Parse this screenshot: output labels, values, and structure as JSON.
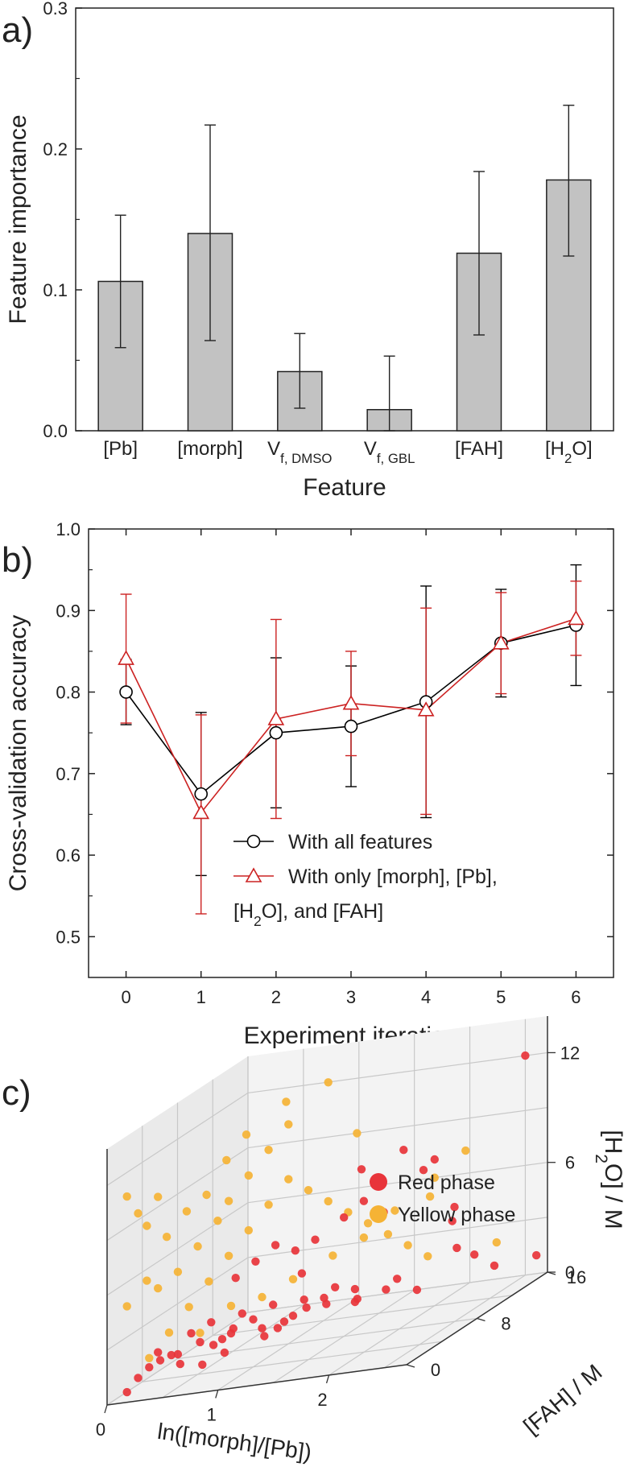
{
  "panels": {
    "a": "a)",
    "b": "b)",
    "c": "c)"
  },
  "chart_data": [
    {
      "type": "bar",
      "title": "",
      "categories": [
        "[Pb]",
        "[morph]",
        "V_f,DMSO",
        "V_f,GBL",
        "[FAH]",
        "[H2O]"
      ],
      "values": [
        0.106,
        0.14,
        0.042,
        0.015,
        0.126,
        0.178
      ],
      "error_low": [
        0.059,
        0.064,
        0.016,
        0.0,
        0.068,
        0.124
      ],
      "error_high": [
        0.153,
        0.217,
        0.069,
        0.053,
        0.184,
        0.231
      ],
      "xlabel": "Feature",
      "ylabel": "Feature importance",
      "ylim": [
        0,
        0.3
      ],
      "yticks": [
        "0.0",
        "0.1",
        "0.2",
        "0.3"
      ]
    },
    {
      "type": "line",
      "x": [
        0,
        1,
        2,
        3,
        4,
        5,
        6
      ],
      "xlabel": "Experiment iteration",
      "ylabel": "Cross-validation accuracy",
      "xlim": [
        -0.5,
        6.5
      ],
      "ylim": [
        0.45,
        1.0
      ],
      "xticks": [
        "0",
        "1",
        "2",
        "3",
        "4",
        "5",
        "6"
      ],
      "yticks": [
        "0.5",
        "0.6",
        "0.7",
        "0.8",
        "0.9",
        "1.0"
      ],
      "series": [
        {
          "name": "With all features",
          "marker": "circle",
          "color": "#000000",
          "values": [
            0.8,
            0.675,
            0.75,
            0.758,
            0.788,
            0.86,
            0.882
          ],
          "error_low": [
            0.76,
            0.575,
            0.658,
            0.684,
            0.646,
            0.794,
            0.808
          ],
          "error_high": [
            0.84,
            0.775,
            0.842,
            0.832,
            0.93,
            0.926,
            0.956
          ]
        },
        {
          "name": "With only [morph], [Pb], [H2O], and [FAH]",
          "marker": "triangle",
          "color": "#cc2222",
          "values": [
            0.841,
            0.652,
            0.767,
            0.786,
            0.778,
            0.86,
            0.89
          ],
          "error_low": [
            0.762,
            0.528,
            0.645,
            0.722,
            0.65,
            0.798,
            0.845
          ],
          "error_high": [
            0.92,
            0.772,
            0.889,
            0.85,
            0.903,
            0.922,
            0.936
          ]
        }
      ]
    },
    {
      "type": "scatter",
      "projection": "3d",
      "xlabel": "ln([morph]/[Pb])",
      "ylabel": "[FAH] / M",
      "zlabel": "[H2O] / M",
      "xticks": [
        "0",
        "1",
        "2"
      ],
      "yticks": [
        "0",
        "8",
        "16"
      ],
      "zticks": [
        "0",
        "6",
        "12"
      ],
      "series": [
        {
          "name": "Red phase",
          "color": "#e8343a",
          "points": [
            [
              0.1,
              1,
              0.3
            ],
            [
              0.3,
              1,
              1.5
            ],
            [
              0.4,
              3,
              1.5
            ],
            [
              0.5,
              2,
              1.2
            ],
            [
              0.6,
              3,
              2
            ],
            [
              0.7,
              2,
              1
            ],
            [
              0.8,
              4,
              2
            ],
            [
              0.9,
              3,
              2.5
            ],
            [
              1.0,
              5,
              1.8
            ],
            [
              1.1,
              4,
              1.6
            ],
            [
              1.2,
              6,
              2
            ],
            [
              1.3,
              3,
              2.2
            ],
            [
              1.4,
              5,
              2.6
            ],
            [
              1.5,
              6,
              2.4
            ],
            [
              1.6,
              8,
              1.8
            ],
            [
              1.7,
              7,
              2.2
            ],
            [
              1.8,
              9,
              2
            ],
            [
              1.0,
              2,
              5.5
            ],
            [
              1.1,
              3,
              6
            ],
            [
              1.2,
              4,
              6.5
            ],
            [
              1.3,
              5,
              5.8
            ],
            [
              1.4,
              6,
              6
            ],
            [
              1.5,
              8,
              6.5
            ],
            [
              1.6,
              9,
              7
            ],
            [
              1.7,
              10,
              6
            ],
            [
              1.8,
              11,
              9
            ],
            [
              2.0,
              12,
              8
            ],
            [
              2.1,
              13,
              5
            ],
            [
              2.2,
              14,
              2
            ],
            [
              2.3,
              15,
              1
            ],
            [
              2.5,
              16,
              12
            ],
            [
              2.6,
              16,
              1
            ],
            [
              0.5,
              1,
              2
            ],
            [
              0.6,
              2,
              2.8
            ],
            [
              0.7,
              3,
              3
            ],
            [
              0.8,
              3,
              2
            ],
            [
              0.9,
              4,
              3
            ],
            [
              1.0,
              4,
              2.6
            ],
            [
              1.1,
              5,
              3
            ],
            [
              1.2,
              5,
              2
            ],
            [
              1.3,
              6,
              2.8
            ],
            [
              1.4,
              7,
              2.5
            ],
            [
              1.5,
              7,
              3
            ],
            [
              1.6,
              8,
              2.5
            ],
            [
              1.2,
              7,
              4
            ],
            [
              1.5,
              10,
              8.5
            ],
            [
              1.9,
              12,
              7.5
            ],
            [
              2.0,
              14,
              4
            ],
            [
              2.2,
              12,
              3
            ],
            [
              0.3,
              2,
              2
            ],
            [
              0.4,
              1,
              1.8
            ],
            [
              0.2,
              1,
              1
            ],
            [
              0.8,
              2,
              2
            ],
            [
              0.9,
              2,
              1.5
            ],
            [
              1.9,
              9,
              2.5
            ],
            [
              2.0,
              10,
              1.5
            ]
          ]
        },
        {
          "name": "Yellow phase",
          "color": "#f5b335",
          "points": [
            [
              0.1,
              1,
              11
            ],
            [
              0.2,
              2,
              9
            ],
            [
              0.3,
              3,
              8
            ],
            [
              0.2,
              2,
              6
            ],
            [
              0.1,
              1,
              5
            ],
            [
              0.3,
              2,
              5.5
            ],
            [
              0.4,
              3,
              6
            ],
            [
              0.5,
              4,
              7
            ],
            [
              0.6,
              5,
              8
            ],
            [
              0.7,
              5,
              9
            ],
            [
              0.8,
              6,
              10
            ],
            [
              0.9,
              7,
              11
            ],
            [
              1.0,
              8,
              12
            ],
            [
              1.2,
              10,
              13.5
            ],
            [
              0.5,
              3,
              4
            ],
            [
              0.6,
              4,
              5
            ],
            [
              0.7,
              5,
              6
            ],
            [
              0.8,
              6,
              7
            ],
            [
              0.9,
              7,
              8
            ],
            [
              1.0,
              8,
              9
            ],
            [
              1.1,
              9,
              8
            ],
            [
              1.2,
              10,
              7
            ],
            [
              1.3,
              11,
              6
            ],
            [
              1.4,
              12,
              5
            ],
            [
              1.5,
              13,
              4
            ],
            [
              1.6,
              14,
              3
            ],
            [
              1.7,
              15,
              2
            ],
            [
              0.3,
              1,
              2
            ],
            [
              0.4,
              2,
              3
            ],
            [
              0.6,
              3,
              2.5
            ],
            [
              0.8,
              4,
              3.5
            ],
            [
              1.0,
              5,
              3.5
            ],
            [
              1.2,
              6,
              4
            ],
            [
              1.4,
              8,
              4.5
            ],
            [
              1.6,
              9,
              5
            ],
            [
              1.8,
              10,
              6
            ],
            [
              2.0,
              12,
              7
            ],
            [
              2.2,
              13,
              8
            ],
            [
              2.4,
              14,
              2.5
            ],
            [
              0.2,
              1,
              10
            ],
            [
              0.3,
              2,
              10.5
            ],
            [
              0.6,
              6,
              11
            ],
            [
              0.7,
              7,
              12
            ],
            [
              0.9,
              9,
              13
            ],
            [
              0.4,
              4,
              9
            ],
            [
              0.5,
              5,
              9.5
            ],
            [
              1.3,
              12,
              10
            ],
            [
              1.8,
              14,
              5.5
            ]
          ]
        }
      ],
      "legend": [
        "Red phase",
        "Yellow phase"
      ]
    }
  ]
}
